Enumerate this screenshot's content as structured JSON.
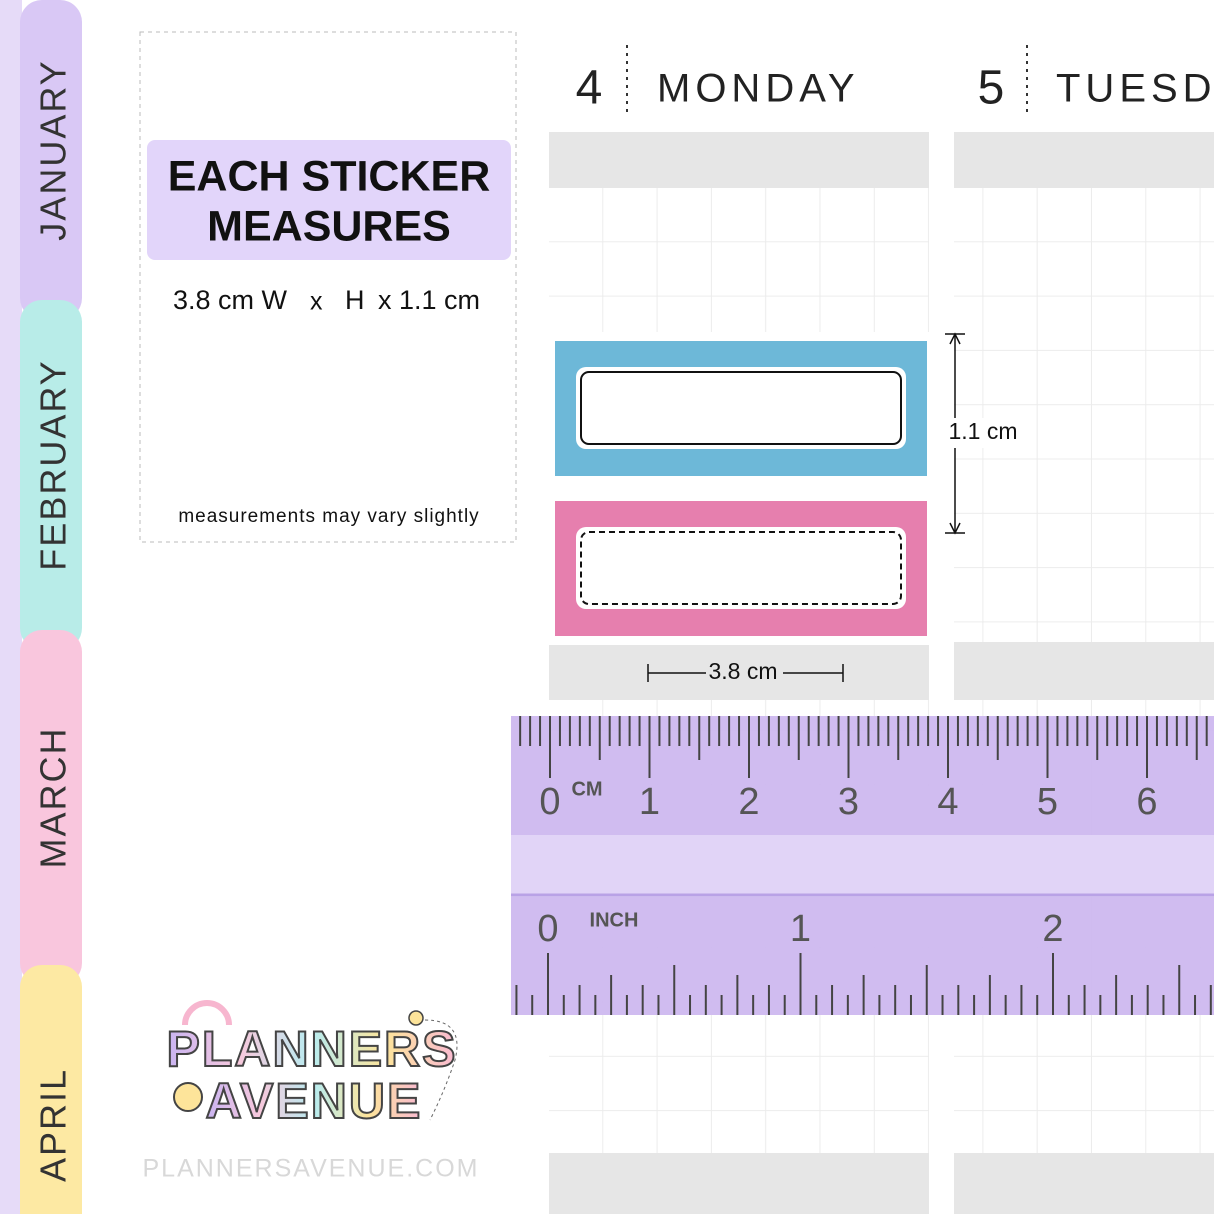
{
  "tabs": [
    "JANUARY",
    "FEBRUARY",
    "MARCH",
    "APRIL"
  ],
  "info": {
    "title_lines": [
      "EACH STICKER",
      "MEASURES"
    ],
    "size_parts": [
      "3.8 cm W",
      "x",
      "H",
      "x 1.1 cm"
    ],
    "note": "measurements may vary slightly"
  },
  "days": [
    {
      "number": "4",
      "name": "MONDAY"
    },
    {
      "number": "5",
      "name": "TUESD"
    }
  ],
  "dimensions": {
    "height": "1.1 cm",
    "width": "3.8 cm"
  },
  "ruler": {
    "cm_unit": "CM",
    "cm_labels": [
      "0",
      "1",
      "2",
      "3",
      "4",
      "5",
      "6"
    ],
    "inch_unit": "INCH",
    "inch_labels": [
      "0",
      "1",
      "2"
    ]
  },
  "logo": {
    "line1": "PLANNERS",
    "line2": "AVENUE",
    "url": "PLANNERSAVENUE.COM"
  }
}
